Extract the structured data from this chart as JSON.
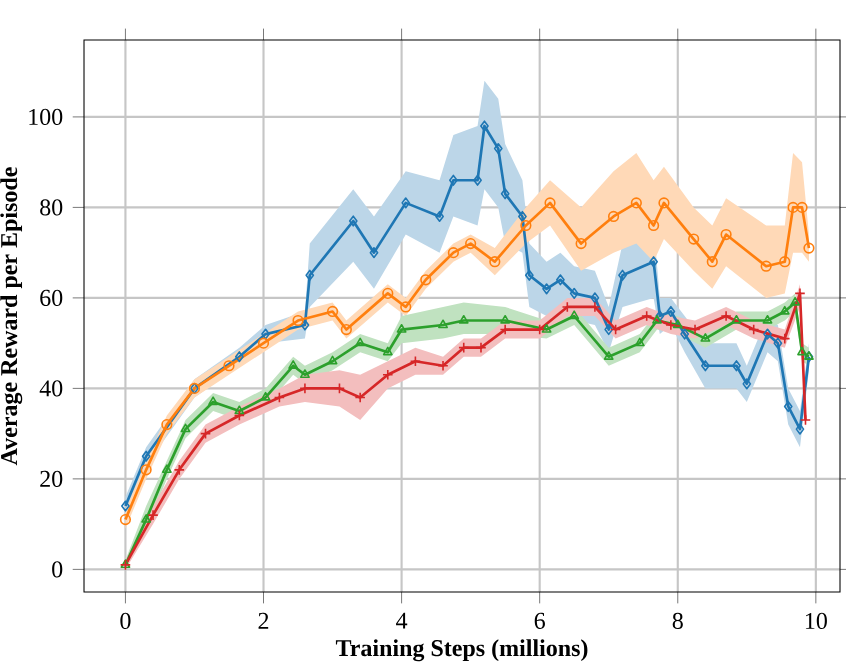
{
  "chart_data": {
    "type": "line",
    "xlabel": "Training Steps (millions)",
    "ylabel": "Average Reward per Episode",
    "xlim": [
      -0.6,
      10.35
    ],
    "ylim": [
      -5,
      117
    ],
    "xticks": [
      0,
      2,
      4,
      6,
      8,
      10
    ],
    "yticks": [
      0,
      20,
      40,
      60,
      80,
      100
    ],
    "grid": true,
    "series": [
      {
        "color": "#1f77b4",
        "marker": "diamond",
        "x": [
          0,
          0.3,
          1.0,
          1.65,
          2.03,
          2.6,
          2.67,
          3.3,
          3.6,
          4.06,
          4.55,
          4.75,
          5.1,
          5.2,
          5.4,
          5.5,
          5.75,
          5.85,
          6.1,
          6.3,
          6.5,
          6.8,
          7.0,
          7.2,
          7.65,
          7.74,
          7.9,
          8.1,
          8.4,
          8.85,
          9.0,
          9.3,
          9.45,
          9.6,
          9.77,
          9.9
        ],
        "values": [
          14,
          25,
          40,
          47,
          52,
          54,
          65,
          77,
          70,
          81,
          78,
          86,
          86,
          98,
          93,
          83,
          78,
          65,
          62,
          64,
          61,
          60,
          53,
          65,
          68,
          56,
          57,
          52,
          45,
          45,
          41,
          52,
          50,
          36,
          31,
          47
        ],
        "lower": [
          12,
          23,
          38,
          45,
          50,
          51,
          58,
          68,
          62,
          74,
          70,
          78,
          76,
          84,
          80,
          72,
          70,
          58,
          56,
          58,
          55,
          54,
          48,
          58,
          60,
          52,
          54,
          48,
          40,
          40,
          37,
          48,
          46,
          32,
          27,
          44
        ],
        "upper": [
          16,
          27,
          42,
          49,
          54,
          57,
          72,
          84,
          78,
          88,
          86,
          96,
          98,
          108,
          104,
          94,
          86,
          72,
          68,
          70,
          67,
          66,
          58,
          72,
          76,
          60,
          60,
          56,
          50,
          50,
          45,
          56,
          54,
          40,
          35,
          50
        ]
      },
      {
        "color": "#ff7f0e",
        "marker": "circle",
        "x": [
          0,
          0.3,
          0.6,
          1.0,
          1.5,
          2.0,
          2.5,
          3.0,
          3.2,
          3.8,
          4.06,
          4.35,
          4.75,
          5.0,
          5.35,
          5.8,
          6.15,
          6.6,
          7.07,
          7.4,
          7.65,
          7.8,
          8.23,
          8.5,
          8.7,
          9.28,
          9.55,
          9.67,
          9.8,
          9.9
        ],
        "values": [
          11,
          22,
          32,
          40,
          45,
          50,
          55,
          57,
          53,
          61,
          58,
          64,
          70,
          72,
          68,
          76,
          81,
          72,
          78,
          81,
          76,
          81,
          73,
          68,
          74,
          67,
          68,
          80,
          80,
          71
        ],
        "lower": [
          9,
          20,
          30,
          38,
          43,
          48,
          53,
          55,
          51,
          59,
          56,
          62,
          68,
          70,
          65,
          72,
          76,
          66,
          70,
          72,
          68,
          73,
          66,
          62,
          67,
          60,
          61,
          70,
          70,
          68
        ],
        "upper": [
          13,
          24,
          34,
          42,
          47,
          52,
          57,
          59,
          55,
          63,
          60,
          66,
          72,
          74,
          71,
          80,
          86,
          80,
          88,
          92,
          86,
          89,
          80,
          76,
          82,
          76,
          76,
          92,
          90,
          74
        ]
      },
      {
        "color": "#2ca02c",
        "marker": "triangle",
        "x": [
          0,
          0.3,
          0.6,
          0.87,
          1.27,
          1.65,
          2.03,
          2.43,
          2.6,
          3.0,
          3.4,
          3.8,
          4.0,
          4.6,
          4.9,
          5.5,
          6.1,
          6.5,
          7.0,
          7.45,
          7.7,
          8.0,
          8.4,
          8.85,
          9.3,
          9.55,
          9.7,
          9.8,
          9.9
        ],
        "values": [
          1,
          11,
          22,
          31,
          37,
          35,
          38,
          45,
          43,
          46,
          50,
          48,
          53,
          54,
          55,
          55,
          53,
          56,
          47,
          50,
          55,
          54,
          51,
          55,
          55,
          57,
          59,
          48,
          47
        ],
        "lower": [
          0,
          9,
          20,
          29,
          35,
          33,
          36,
          43,
          41,
          44,
          48,
          46,
          50,
          51,
          52,
          52,
          51,
          54,
          45,
          48,
          53,
          52,
          49,
          53,
          53,
          55,
          57,
          46,
          45
        ],
        "upper": [
          2,
          14,
          24,
          33,
          39,
          37,
          40,
          47,
          45,
          48,
          52,
          50,
          56,
          58,
          59,
          58,
          55,
          58,
          49,
          52,
          57,
          56,
          53,
          57,
          57,
          59,
          61,
          50,
          49
        ]
      },
      {
        "color": "#d62728",
        "marker": "cross",
        "x": [
          0,
          0.4,
          0.78,
          1.16,
          1.65,
          2.23,
          2.6,
          3.1,
          3.4,
          3.8,
          4.2,
          4.6,
          4.9,
          5.15,
          5.5,
          6.0,
          6.4,
          6.8,
          7.1,
          7.55,
          7.9,
          8.25,
          8.7,
          9.1,
          9.55,
          9.77,
          9.85
        ],
        "values": [
          1,
          12,
          22,
          30,
          34,
          38,
          40,
          40,
          38,
          43,
          46,
          45,
          49,
          49,
          53,
          53,
          58,
          58,
          53,
          56,
          54,
          53,
          56,
          53,
          51,
          61,
          33
        ],
        "lower": [
          0,
          10,
          20,
          28,
          32,
          36,
          37,
          36,
          33,
          40,
          43,
          43,
          47,
          47,
          51,
          51,
          56,
          56,
          51,
          54,
          52,
          51,
          54,
          51,
          49,
          58,
          31
        ],
        "upper": [
          2,
          14,
          24,
          32,
          36,
          40,
          43,
          44,
          43,
          46,
          49,
          47,
          51,
          51,
          55,
          55,
          60,
          60,
          55,
          58,
          56,
          55,
          58,
          55,
          53,
          63,
          35
        ]
      }
    ]
  }
}
